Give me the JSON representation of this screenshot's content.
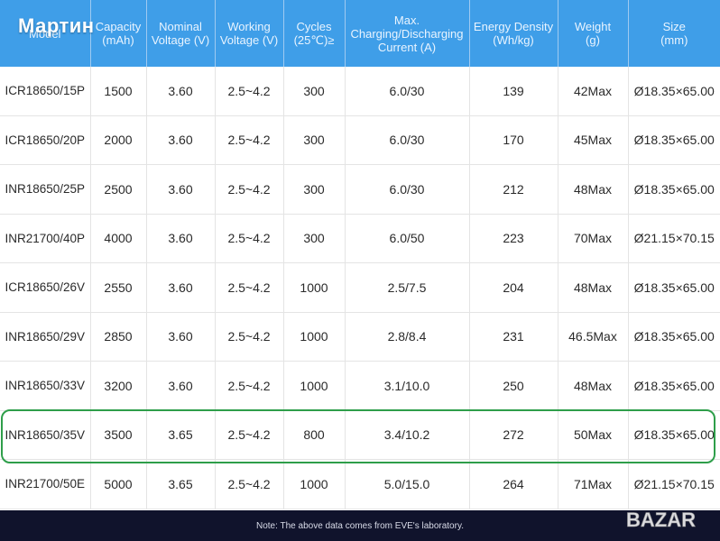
{
  "overlay": {
    "seller_name": "Мартин",
    "watermark_text": "BAZAR"
  },
  "table": {
    "headers": [
      "Model",
      "Capacity\n(mAh)",
      "Nominal\nVoltage (V)",
      "Working\nVoltage (V)",
      "Cycles\n(25℃)≥",
      "Max.\nCharging/Discharging\nCurrent (A)",
      "Energy Density\n(Wh/kg)",
      "Weight\n(g)",
      "Size\n(mm)"
    ],
    "rows": [
      [
        "ICR18650/15P",
        "1500",
        "3.60",
        "2.5~4.2",
        "300",
        "6.0/30",
        "139",
        "42Max",
        "Ø18.35×65.00"
      ],
      [
        "ICR18650/20P",
        "2000",
        "3.60",
        "2.5~4.2",
        "300",
        "6.0/30",
        "170",
        "45Max",
        "Ø18.35×65.00"
      ],
      [
        "INR18650/25P",
        "2500",
        "3.60",
        "2.5~4.2",
        "300",
        "6.0/30",
        "212",
        "48Max",
        "Ø18.35×65.00"
      ],
      [
        "INR21700/40P",
        "4000",
        "3.60",
        "2.5~4.2",
        "300",
        "6.0/50",
        "223",
        "70Max",
        "Ø21.15×70.15"
      ],
      [
        "ICR18650/26V",
        "2550",
        "3.60",
        "2.5~4.2",
        "1000",
        "2.5/7.5",
        "204",
        "48Max",
        "Ø18.35×65.00"
      ],
      [
        "INR18650/29V",
        "2850",
        "3.60",
        "2.5~4.2",
        "1000",
        "2.8/8.4",
        "231",
        "46.5Max",
        "Ø18.35×65.00"
      ],
      [
        "INR18650/33V",
        "3200",
        "3.60",
        "2.5~4.2",
        "1000",
        "3.1/10.0",
        "250",
        "48Max",
        "Ø18.35×65.00"
      ],
      [
        "INR18650/35V",
        "3500",
        "3.65",
        "2.5~4.2",
        "800",
        "3.4/10.2",
        "272",
        "50Max",
        "Ø18.35×65.00"
      ],
      [
        "INR21700/50E",
        "5000",
        "3.65",
        "2.5~4.2",
        "1000",
        "5.0/15.0",
        "264",
        "71Max",
        "Ø21.15×70.15"
      ]
    ],
    "highlighted_model": "INR18650/35V"
  },
  "footer": {
    "note": "Note: The above data comes from EVE's laboratory."
  },
  "colors": {
    "header_bg": "#3f9ee8",
    "footer_bg": "#10132c",
    "highlight": "#2e9e4a"
  }
}
